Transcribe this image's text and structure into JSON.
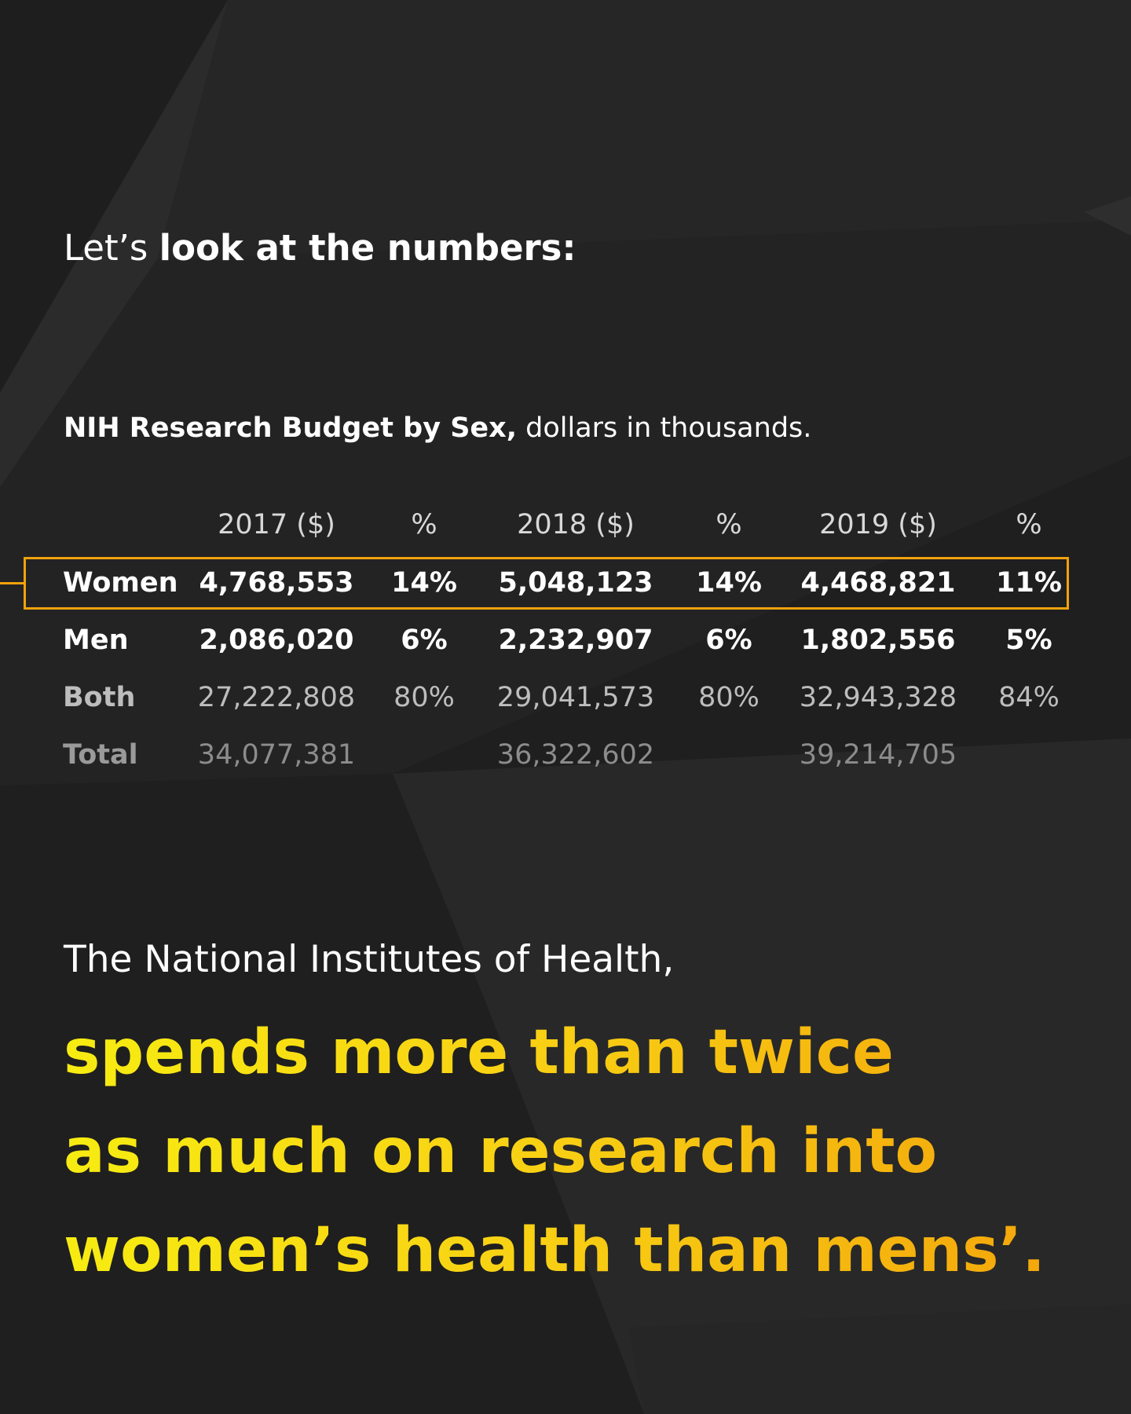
{
  "heading": {
    "prefix": "Let’s ",
    "bold": "look at the numbers:"
  },
  "table": {
    "title_bold": "NIH Research Budget by Sex,",
    "title_rest": " dollars in thousands.",
    "headers": [
      "2017 ($)",
      "%",
      "2018 ($)",
      "%",
      "2019 ($)",
      "%"
    ],
    "rows": [
      {
        "label": "Women",
        "values": [
          "4,768,553",
          "14%",
          "5,048,123",
          "14%",
          "4,468,821",
          "11%"
        ]
      },
      {
        "label": "Men",
        "values": [
          "2,086,020",
          "6%",
          "2,232,907",
          "6%",
          "1,802,556",
          "5%"
        ]
      },
      {
        "label": "Both",
        "values": [
          "27,222,808",
          "80%",
          "29,041,573",
          "80%",
          "32,943,328",
          "84%"
        ]
      },
      {
        "label": "Total",
        "values": [
          "34,077,381",
          "",
          "36,322,602",
          "",
          "39,214,705",
          ""
        ]
      }
    ],
    "highlight_color": "#f2a20c"
  },
  "subline": "The National Institutes of Health,",
  "statement": {
    "lines": [
      "spends more than twice",
      "as much on research into",
      "women’s health than mens’."
    ],
    "gradient_start": "#f7ec12",
    "gradient_end": "#f3a40b"
  },
  "colors": {
    "background": "#232323",
    "text": "#ffffff"
  }
}
